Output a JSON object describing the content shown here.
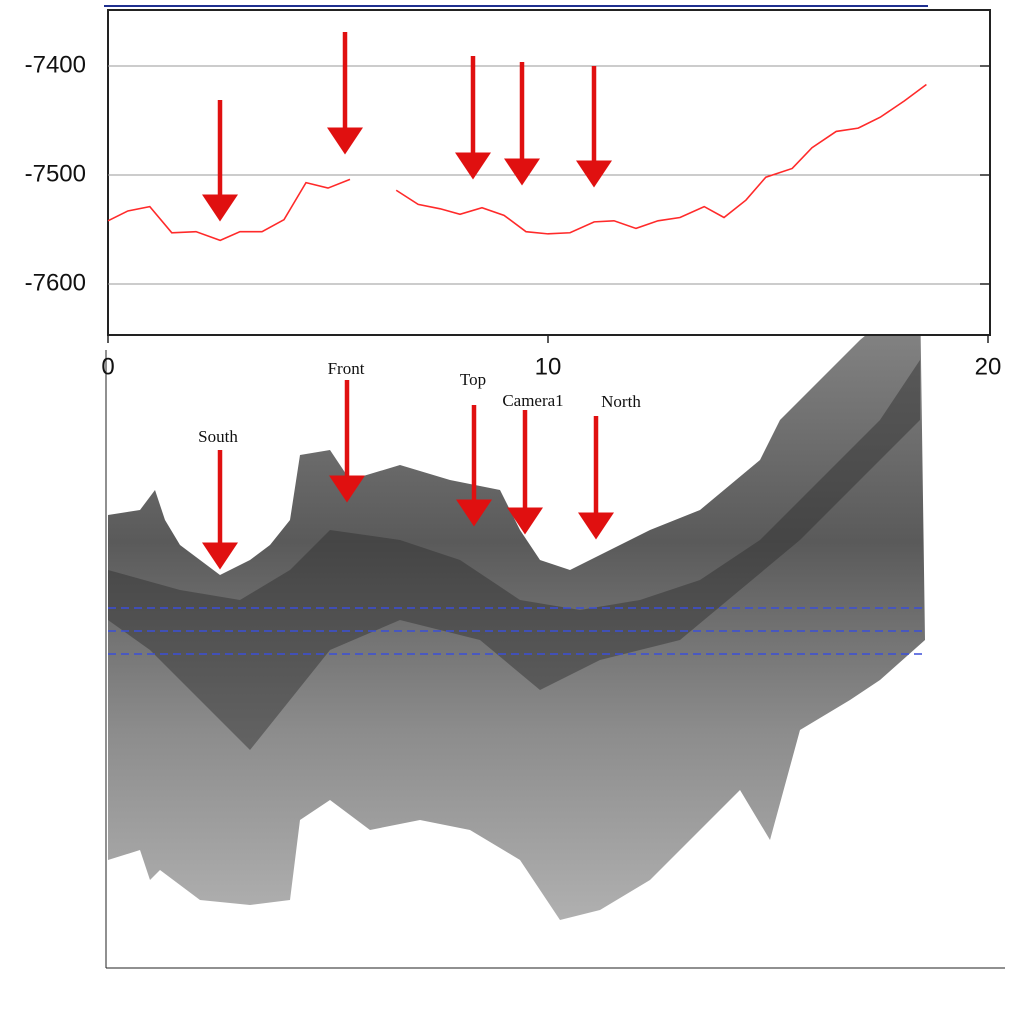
{
  "chart_data": {
    "type": "line",
    "x": [
      0,
      0.45,
      0.95,
      1.45,
      2.0,
      2.55,
      3.0,
      3.5,
      4.0,
      4.5,
      5.0,
      5.5,
      6.0,
      6.55,
      7.05,
      7.55,
      8.0,
      8.5,
      9.0,
      9.5,
      10.0,
      10.5,
      11.05,
      11.5,
      12.0,
      12.5,
      13.0,
      13.55,
      14.0,
      14.5,
      14.95,
      15.55,
      16.0,
      16.55,
      17.05,
      17.55,
      18.1,
      18.6
    ],
    "series": [
      {
        "color": "#ff2a2a",
        "values": [
          -7542,
          -7533,
          -7529,
          -7553,
          -7552,
          -7560,
          -7552,
          -7552,
          -7541,
          -7507,
          -7512,
          -7504,
          null,
          -7514,
          -7527,
          -7531,
          -7536,
          -7530,
          -7537,
          -7552,
          -7554,
          -7553,
          -7543,
          -7542,
          -7549,
          -7542,
          -7539,
          -7529,
          -7539,
          -7523,
          -7502,
          -7494,
          -7475,
          -7460,
          -7457,
          -7447,
          -7432,
          -7417
        ]
      }
    ],
    "xlim": [
      0,
      20
    ],
    "xticks": [
      0,
      10,
      20
    ],
    "ylim": [
      -7650,
      -7350
    ],
    "yticks": [
      -7400,
      -7500,
      -7600
    ],
    "grid": true,
    "annotations": [
      "South",
      "Front",
      "Top",
      "Camera1",
      "North"
    ]
  }
}
